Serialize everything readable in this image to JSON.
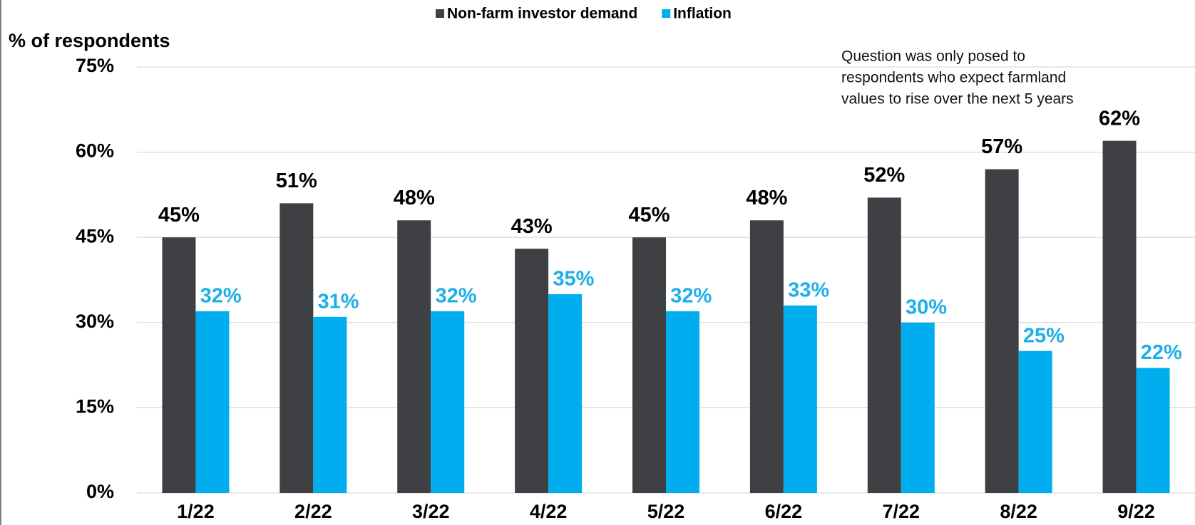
{
  "chart_data": {
    "type": "bar",
    "y_title": "% of respondents",
    "annotation": [
      "Question was only posed to",
      "respondents who expect farmland",
      "values to rise over the next 5 years"
    ],
    "categories": [
      "1/22",
      "2/22",
      "3/22",
      "4/22",
      "5/22",
      "6/22",
      "7/22",
      "8/22",
      "9/22"
    ],
    "series": [
      {
        "name": "Non-farm investor demand",
        "color": "#3f4044",
        "label_color": "#000000",
        "values": [
          45,
          51,
          48,
          43,
          45,
          48,
          52,
          57,
          62
        ],
        "value_labels": [
          "45%",
          "51%",
          "48%",
          "43%",
          "45%",
          "48%",
          "52%",
          "57%",
          "62%"
        ]
      },
      {
        "name": "Inflation",
        "color": "#00aeef",
        "label_color": "#1eaee8",
        "values": [
          32,
          31,
          32,
          35,
          32,
          33,
          30,
          25,
          22
        ],
        "value_labels": [
          "32%",
          "31%",
          "32%",
          "35%",
          "32%",
          "33%",
          "30%",
          "25%",
          "22%"
        ]
      }
    ],
    "ylim": [
      0,
      75
    ],
    "yticks": [
      {
        "value": 0,
        "label": "0%"
      },
      {
        "value": 15,
        "label": "15%"
      },
      {
        "value": 30,
        "label": "30%"
      },
      {
        "value": 45,
        "label": "45%"
      },
      {
        "value": 60,
        "label": "60%"
      },
      {
        "value": 75,
        "label": "75%"
      }
    ],
    "grid": true,
    "legend": "top"
  }
}
